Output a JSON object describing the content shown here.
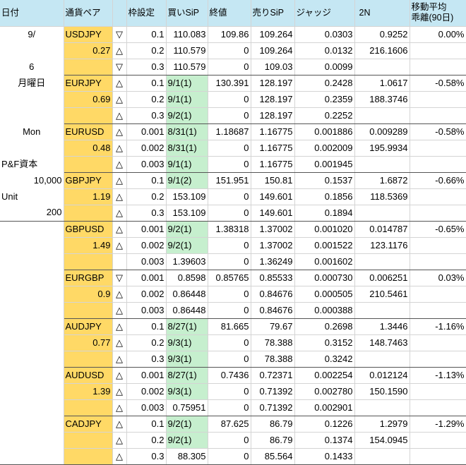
{
  "headers": {
    "date": "日付",
    "pair": "通貨ペア",
    "slot": "枠設定",
    "buy_ip": "買いSiP",
    "close": "終値",
    "sell_ip": "売りSiP",
    "judge": "ジャッジ",
    "two_n": "2N",
    "ma_line1": "移動平均",
    "ma_line2": "乖離(90日)"
  },
  "left": {
    "date_line1": "9/",
    "date_line2": "6",
    "weekday_jp": "月曜日",
    "weekday_en": "Mon",
    "capital_label": "P&F資本",
    "capital_value": "10,000",
    "unit_label": "Unit",
    "unit_value": "200"
  },
  "groups": [
    {
      "pair": "USDJPY",
      "ratio": "0.27",
      "ma": "0.00%",
      "rows": [
        {
          "arrow": "▽",
          "slot": "0.1",
          "buy": "110.083",
          "buy_hl": false,
          "close": "109.86",
          "sell": "109.264",
          "judge": "0.0303",
          "n2": "0.9252"
        },
        {
          "arrow": "△",
          "slot": "0.2",
          "buy": "110.579",
          "buy_hl": false,
          "close": "0",
          "sell": "109.264",
          "judge": "0.0132",
          "n2": "216.1606"
        },
        {
          "arrow": "▽",
          "slot": "0.3",
          "buy": "110.579",
          "buy_hl": false,
          "close": "0",
          "sell": "109.03",
          "judge": "0.0099",
          "n2": ""
        }
      ]
    },
    {
      "pair": "EURJPY",
      "ratio": "0.69",
      "ma": "-0.58%",
      "rows": [
        {
          "arrow": "△",
          "slot": "0.1",
          "buy": "9/1(1)",
          "buy_hl": true,
          "close": "130.391",
          "sell": "128.197",
          "judge": "0.2428",
          "n2": "1.0617"
        },
        {
          "arrow": "△",
          "slot": "0.2",
          "buy": "9/1(1)",
          "buy_hl": true,
          "close": "0",
          "sell": "128.197",
          "judge": "0.2359",
          "n2": "188.3746"
        },
        {
          "arrow": "△",
          "slot": "0.3",
          "buy": "9/2(1)",
          "buy_hl": true,
          "close": "0",
          "sell": "128.197",
          "judge": "0.2252",
          "n2": ""
        }
      ]
    },
    {
      "pair": "EURUSD",
      "ratio": "0.48",
      "ma": "-0.58%",
      "rows": [
        {
          "arrow": "△",
          "slot": "0.001",
          "buy": "8/31(1)",
          "buy_hl": true,
          "close": "1.18687",
          "sell": "1.16775",
          "judge": "0.001886",
          "n2": "0.009289"
        },
        {
          "arrow": "△",
          "slot": "0.002",
          "buy": "8/31(1)",
          "buy_hl": true,
          "close": "0",
          "sell": "1.16775",
          "judge": "0.002009",
          "n2": "195.9934"
        },
        {
          "arrow": "△",
          "slot": "0.003",
          "buy": "9/1(1)",
          "buy_hl": true,
          "close": "0",
          "sell": "1.16775",
          "judge": "0.001945",
          "n2": ""
        }
      ]
    },
    {
      "pair": "GBPJPY",
      "ratio": "1.19",
      "ma": "-0.66%",
      "rows": [
        {
          "arrow": "△",
          "slot": "0.1",
          "buy": "9/1(2)",
          "buy_hl": true,
          "close": "151.951",
          "sell": "150.81",
          "judge": "0.1537",
          "n2": "1.6872"
        },
        {
          "arrow": "△",
          "slot": "0.2",
          "buy": "153.109",
          "buy_hl": false,
          "close": "0",
          "sell": "149.601",
          "judge": "0.1856",
          "n2": "118.5369"
        },
        {
          "arrow": "△",
          "slot": "0.3",
          "buy": "153.109",
          "buy_hl": false,
          "close": "0",
          "sell": "149.601",
          "judge": "0.1894",
          "n2": ""
        }
      ]
    },
    {
      "pair": "GBPUSD",
      "ratio": "1.49",
      "ma": "-0.65%",
      "rows": [
        {
          "arrow": "△",
          "slot": "0.001",
          "buy": "9/2(1)",
          "buy_hl": true,
          "close": "1.38318",
          "sell": "1.37002",
          "judge": "0.001020",
          "n2": "0.014787"
        },
        {
          "arrow": "△",
          "slot": "0.002",
          "buy": "9/2(1)",
          "buy_hl": true,
          "close": "0",
          "sell": "1.37002",
          "judge": "0.001522",
          "n2": "123.1176"
        },
        {
          "arrow": "",
          "slot": "0.003",
          "buy": "1.39603",
          "buy_hl": false,
          "close": "0",
          "sell": "1.36249",
          "judge": "0.001602",
          "n2": ""
        }
      ]
    },
    {
      "pair": "EURGBP",
      "ratio": "0.9",
      "ma": "0.03%",
      "rows": [
        {
          "arrow": "▽",
          "slot": "0.001",
          "buy": "0.8598",
          "buy_hl": false,
          "close": "0.85765",
          "sell": "0.85533",
          "judge": "0.000730",
          "n2": "0.006251"
        },
        {
          "arrow": "△",
          "slot": "0.002",
          "buy": "0.86448",
          "buy_hl": false,
          "close": "0",
          "sell": "0.84676",
          "judge": "0.000505",
          "n2": "210.5461"
        },
        {
          "arrow": "△",
          "slot": "0.003",
          "buy": "0.86448",
          "buy_hl": false,
          "close": "0",
          "sell": "0.84676",
          "judge": "0.000388",
          "n2": ""
        }
      ]
    },
    {
      "pair": "AUDJPY",
      "ratio": "0.77",
      "ma": "-1.16%",
      "rows": [
        {
          "arrow": "△",
          "slot": "0.1",
          "buy": "8/27(1)",
          "buy_hl": true,
          "close": "81.665",
          "sell": "79.67",
          "judge": "0.2698",
          "n2": "1.3446"
        },
        {
          "arrow": "△",
          "slot": "0.2",
          "buy": "9/3(1)",
          "buy_hl": true,
          "close": "0",
          "sell": "78.388",
          "judge": "0.3152",
          "n2": "148.7463"
        },
        {
          "arrow": "△",
          "slot": "0.3",
          "buy": "9/3(1)",
          "buy_hl": true,
          "close": "0",
          "sell": "78.388",
          "judge": "0.3242",
          "n2": ""
        }
      ]
    },
    {
      "pair": "AUDUSD",
      "ratio": "1.39",
      "ma": "-1.13%",
      "rows": [
        {
          "arrow": "△",
          "slot": "0.001",
          "buy": "8/27(1)",
          "buy_hl": true,
          "close": "0.7436",
          "sell": "0.72371",
          "judge": "0.002254",
          "n2": "0.012124"
        },
        {
          "arrow": "△",
          "slot": "0.002",
          "buy": "9/3(1)",
          "buy_hl": true,
          "close": "0",
          "sell": "0.71392",
          "judge": "0.002780",
          "n2": "150.1590"
        },
        {
          "arrow": "△",
          "slot": "0.003",
          "buy": "0.75951",
          "buy_hl": false,
          "close": "0",
          "sell": "0.71392",
          "judge": "0.002901",
          "n2": ""
        }
      ]
    },
    {
      "pair": "CADJPY",
      "ratio": "",
      "ma": "-1.29%",
      "rows": [
        {
          "arrow": "△",
          "slot": "0.1",
          "buy": "9/2(1)",
          "buy_hl": true,
          "close": "87.625",
          "sell": "86.79",
          "judge": "0.1226",
          "n2": "1.2979"
        },
        {
          "arrow": "△",
          "slot": "0.2",
          "buy": "9/2(1)",
          "buy_hl": true,
          "close": "0",
          "sell": "86.79",
          "judge": "0.1374",
          "n2": "154.0945"
        },
        {
          "arrow": "△",
          "slot": "0.3",
          "buy": "88.305",
          "buy_hl": false,
          "close": "0",
          "sell": "85.564",
          "judge": "0.1433",
          "n2": ""
        }
      ]
    }
  ],
  "colors": {
    "header_bg": "#c5e7f3",
    "pair_bg": "#ffd966",
    "pair_text": "#cc6600",
    "buy_highlight": "#c6efce"
  }
}
